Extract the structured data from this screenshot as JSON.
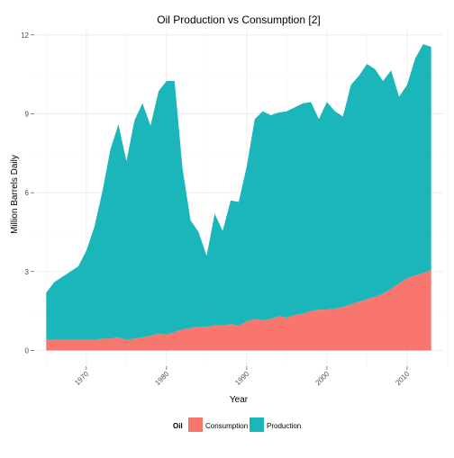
{
  "chart_data": {
    "type": "area",
    "stacked": true,
    "title": "Oil Production vs Consumption [2]",
    "xlabel": "Year",
    "ylabel": "Million Barrels Daily",
    "xlim": [
      1963.5,
      2014.5
    ],
    "ylim": [
      -0.6,
      12.2
    ],
    "x_ticks": [
      1970,
      1980,
      1990,
      2000,
      2010
    ],
    "y_ticks": [
      0,
      3,
      6,
      9,
      12
    ],
    "y_tick_labels": [
      "0",
      "3",
      "6",
      "9",
      "12"
    ],
    "grid": true,
    "legend": {
      "title": "Oil",
      "position": "bottom"
    },
    "x": [
      1965,
      1966,
      1967,
      1968,
      1969,
      1970,
      1971,
      1972,
      1973,
      1974,
      1975,
      1976,
      1977,
      1978,
      1979,
      1980,
      1981,
      1982,
      1983,
      1984,
      1985,
      1986,
      1987,
      1988,
      1989,
      1990,
      1991,
      1992,
      1993,
      1994,
      1995,
      1996,
      1997,
      1998,
      1999,
      2000,
      2001,
      2002,
      2003,
      2004,
      2005,
      2006,
      2007,
      2008,
      2009,
      2010,
      2011,
      2012,
      2013
    ],
    "series": [
      {
        "name": "Consumption",
        "color": "#f8766d",
        "values": [
          0.4,
          0.4,
          0.4,
          0.4,
          0.4,
          0.4,
          0.4,
          0.45,
          0.45,
          0.5,
          0.4,
          0.45,
          0.5,
          0.55,
          0.65,
          0.6,
          0.7,
          0.8,
          0.85,
          0.9,
          0.9,
          0.95,
          0.95,
          1.0,
          0.95,
          1.1,
          1.2,
          1.15,
          1.2,
          1.3,
          1.25,
          1.35,
          1.4,
          1.5,
          1.55,
          1.55,
          1.6,
          1.65,
          1.75,
          1.85,
          1.95,
          2.05,
          2.15,
          2.35,
          2.55,
          2.75,
          2.85,
          2.95,
          3.05
        ]
      },
      {
        "name": "Production",
        "color": "#1bb6b9",
        "values": [
          1.8,
          2.2,
          2.4,
          2.6,
          2.8,
          3.4,
          4.3,
          5.6,
          7.2,
          8.1,
          6.8,
          8.3,
          8.9,
          8.0,
          9.2,
          9.65,
          9.55,
          6.1,
          4.1,
          3.6,
          2.7,
          4.25,
          3.6,
          4.7,
          4.7,
          5.9,
          7.6,
          7.95,
          7.75,
          7.75,
          7.85,
          7.9,
          8.0,
          7.95,
          7.25,
          7.9,
          7.5,
          7.25,
          8.35,
          8.6,
          8.95,
          8.65,
          8.1,
          8.3,
          7.1,
          7.35,
          8.25,
          8.7,
          8.5
        ]
      }
    ]
  }
}
